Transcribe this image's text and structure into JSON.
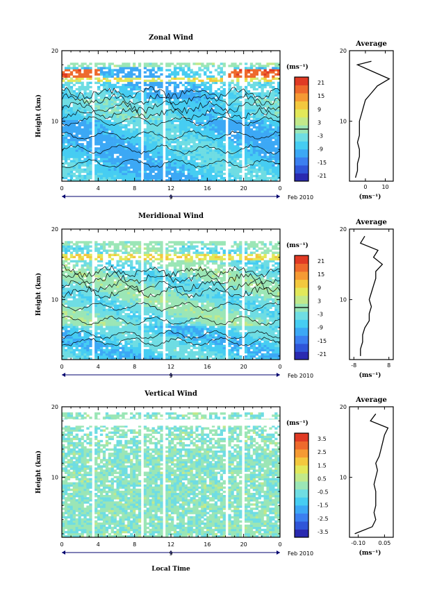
{
  "colors": {
    "colormap": [
      "#2a2ab0",
      "#2f55d8",
      "#3b7ff0",
      "#3ca8f5",
      "#46cdf2",
      "#6fdde3",
      "#9be6b6",
      "#c2e98a",
      "#e2e85a",
      "#f3c83e",
      "#f59a33",
      "#ee6a2c",
      "#e03a24"
    ],
    "contour": "#000000"
  },
  "figure": {
    "date_label": "Feb 2010",
    "xlabel": "Local Time",
    "avg_title": "Average",
    "avg_unit": "(ms⁻¹)",
    "colorbar_unit": "(ms⁻¹)",
    "xticks": [
      "0",
      "4",
      "8",
      "12",
      "16",
      "20",
      "0"
    ],
    "day_label": "9",
    "ylabel": "Height (km)",
    "yticks": [
      "20",
      "10"
    ]
  },
  "chart_data": [
    {
      "type": "heatmap",
      "title": "Zonal Wind",
      "xlabel": "Local Time",
      "ylabel": "Height (km)",
      "xlim": [
        0,
        24
      ],
      "ylim": [
        1.5,
        20
      ],
      "colorbar": {
        "unit": "(ms⁻¹)",
        "ticks": [
          "21",
          "15",
          "9",
          "3",
          "-3",
          "-9",
          "-15",
          "-21"
        ],
        "range": [
          -24,
          24
        ]
      },
      "profile": {
        "title": "Average",
        "xlabel": "(ms⁻¹)",
        "xticks": [
          "0",
          "10"
        ],
        "xlim": [
          -8,
          14
        ],
        "heights": [
          2,
          3,
          4,
          5,
          6,
          7,
          8,
          9,
          10,
          11,
          12,
          13,
          14,
          15,
          16,
          17,
          18,
          18.5
        ],
        "values": [
          -5,
          -4,
          -4,
          -3,
          -3,
          -4,
          -3,
          -3,
          -3,
          -2,
          -1,
          0,
          3,
          6,
          12,
          4,
          -4,
          3
        ]
      }
    },
    {
      "type": "heatmap",
      "title": "Meridional Wind",
      "xlabel": "Local Time",
      "ylabel": "Height (km)",
      "xlim": [
        0,
        24
      ],
      "ylim": [
        1.5,
        20
      ],
      "colorbar": {
        "unit": "(ms⁻¹)",
        "ticks": [
          "21",
          "15",
          "9",
          "3",
          "-3",
          "-9",
          "-15",
          "-21"
        ],
        "range": [
          -24,
          24
        ]
      },
      "profile": {
        "title": "Average",
        "xlabel": "(ms⁻¹)",
        "xticks": [
          "-8",
          "8"
        ],
        "xlim": [
          -10,
          10
        ],
        "heights": [
          2,
          3,
          4,
          5,
          6,
          7,
          8,
          9,
          10,
          11,
          12,
          13,
          14,
          15,
          16,
          17,
          18,
          19
        ],
        "values": [
          -5,
          -5,
          -4,
          -4,
          -3,
          -1,
          -1,
          0,
          -1,
          0,
          1,
          2,
          2,
          5,
          1,
          3,
          -5,
          -3
        ]
      }
    },
    {
      "type": "heatmap",
      "title": "Vertical Wind",
      "xlabel": "Local Time",
      "ylabel": "Height (km)",
      "xlim": [
        0,
        24
      ],
      "ylim": [
        1.5,
        20
      ],
      "colorbar": {
        "unit": "(ms⁻¹)",
        "ticks": [
          "3.5",
          "2.5",
          "1.5",
          "0.5",
          "-0.5",
          "-1.5",
          "-2.5",
          "-3.5"
        ],
        "range": [
          -4,
          4
        ]
      },
      "profile": {
        "title": "Average",
        "xlabel": "(ms⁻¹)",
        "xticks": [
          "-0.10",
          "0.05"
        ],
        "xlim": [
          -0.15,
          0.1
        ],
        "heights": [
          2,
          3,
          4,
          5,
          6,
          7,
          8,
          9,
          10,
          11,
          12,
          13,
          14,
          15,
          16,
          17,
          18,
          19
        ],
        "values": [
          -0.12,
          -0.02,
          0.0,
          -0.01,
          0.0,
          0.0,
          0.0,
          -0.01,
          0.0,
          0.01,
          0.0,
          0.02,
          0.03,
          0.04,
          0.05,
          0.07,
          -0.03,
          0.0
        ]
      }
    }
  ]
}
